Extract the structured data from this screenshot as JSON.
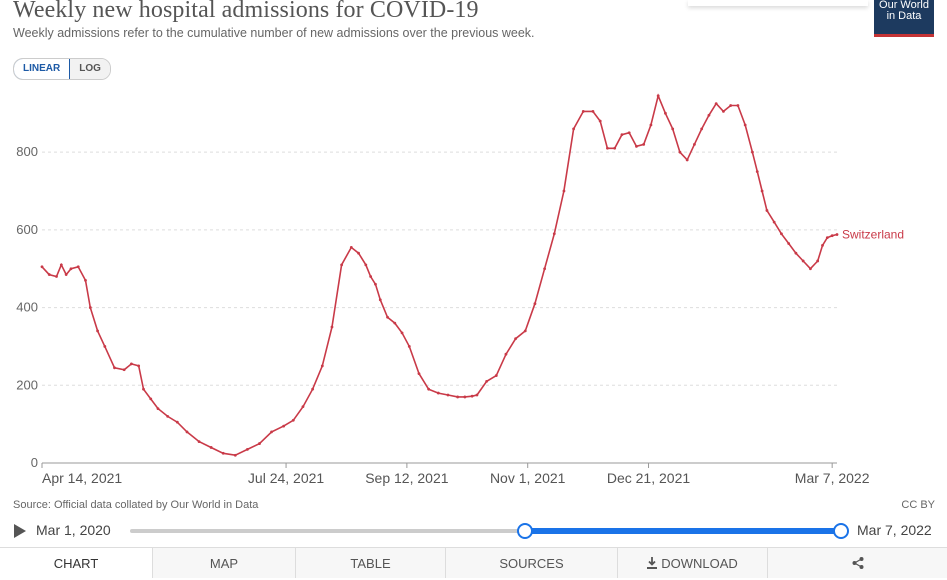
{
  "header": {
    "title": "Weekly new hospital admissions for COVID-19",
    "subtitle": "Weekly admissions refer to the cumulative number of new admissions over the previous week.",
    "logo_line1": "Our World",
    "logo_line2": "in Data"
  },
  "scale_toggle": {
    "linear": "LINEAR",
    "log": "LOG",
    "selected": "LINEAR"
  },
  "footer": {
    "source": "Source: Official data collated by Our World in Data",
    "license": "CC BY"
  },
  "timeline": {
    "start_label": "Mar 1, 2020",
    "end_label": "Mar 7, 2022",
    "selection_start": 0.56,
    "selection_end": 1.0
  },
  "tabs": [
    {
      "label": "CHART",
      "icon": ""
    },
    {
      "label": "MAP",
      "icon": ""
    },
    {
      "label": "TABLE",
      "icon": ""
    },
    {
      "label": "SOURCES",
      "icon": ""
    },
    {
      "label": "DOWNLOAD",
      "icon": "download-icon"
    },
    {
      "label": "",
      "icon": "share-icon"
    }
  ],
  "colors": {
    "series": "#c93a48",
    "accent": "#1a73e8",
    "brand": "#1d3a5f",
    "brand_red": "#c43335"
  },
  "chart_data": {
    "type": "line",
    "title": "Weekly new hospital admissions for COVID-19",
    "xlabel": "",
    "ylabel": "",
    "ylim": [
      0,
      960
    ],
    "yticks": [
      0,
      200,
      400,
      600,
      800
    ],
    "ytick_labels": [
      "0",
      "200",
      "400",
      "600",
      "800"
    ],
    "xlim_days": [
      0,
      329
    ],
    "xticks": [
      {
        "day": 0,
        "label": "Apr 14, 2021"
      },
      {
        "day": 101,
        "label": "Jul 24, 2021"
      },
      {
        "day": 151,
        "label": "Sep 12, 2021"
      },
      {
        "day": 201,
        "label": "Nov 1, 2021"
      },
      {
        "day": 251,
        "label": "Dec 21, 2021"
      },
      {
        "day": 327,
        "label": "Mar 7, 2022"
      }
    ],
    "series": [
      {
        "name": "Switzerland",
        "x": [
          0,
          3,
          6,
          8,
          10,
          12,
          15,
          18,
          20,
          23,
          26,
          30,
          34,
          37,
          40,
          42,
          45,
          48,
          52,
          56,
          60,
          65,
          70,
          75,
          80,
          85,
          90,
          95,
          100,
          104,
          108,
          112,
          116,
          120,
          124,
          128,
          131,
          134,
          136,
          138,
          140,
          143,
          146,
          149,
          152,
          156,
          160,
          164,
          168,
          172,
          175,
          178,
          180,
          184,
          188,
          192,
          196,
          200,
          204,
          208,
          212,
          216,
          220,
          224,
          228,
          231,
          234,
          237,
          240,
          243,
          246,
          249,
          252,
          255,
          258,
          261,
          264,
          267,
          270,
          273,
          276,
          279,
          282,
          285,
          288,
          291,
          294,
          296,
          298,
          300,
          303,
          306,
          309,
          312,
          315,
          318,
          321,
          323,
          325,
          327,
          329
        ],
        "values": [
          505,
          485,
          480,
          510,
          485,
          500,
          505,
          470,
          400,
          340,
          300,
          245,
          240,
          255,
          250,
          190,
          165,
          140,
          120,
          105,
          80,
          55,
          40,
          25,
          20,
          35,
          50,
          80,
          95,
          110,
          145,
          190,
          250,
          350,
          510,
          555,
          540,
          510,
          480,
          460,
          420,
          375,
          360,
          335,
          300,
          230,
          190,
          180,
          175,
          170,
          170,
          172,
          175,
          210,
          225,
          280,
          320,
          340,
          410,
          500,
          590,
          700,
          860,
          905,
          905,
          880,
          810,
          810,
          845,
          850,
          815,
          820,
          870,
          945,
          900,
          860,
          800,
          780,
          820,
          860,
          895,
          925,
          905,
          920,
          920,
          870,
          800,
          750,
          700,
          650,
          620,
          590,
          565,
          540,
          520,
          500,
          520,
          560,
          580,
          585,
          588
        ]
      }
    ]
  }
}
